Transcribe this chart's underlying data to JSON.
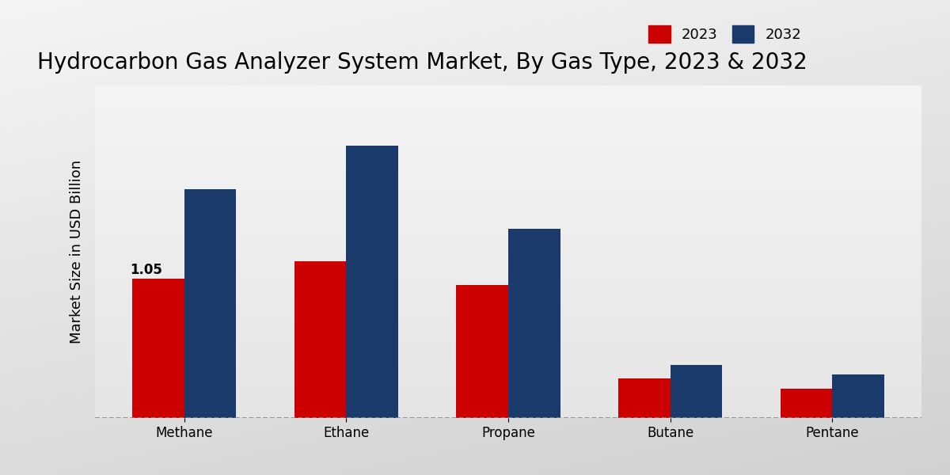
{
  "title": "Hydrocarbon Gas Analyzer System Market, By Gas Type, 2023 & 2032",
  "ylabel": "Market Size in USD Billion",
  "categories": [
    "Methane",
    "Ethane",
    "Propane",
    "Butane",
    "Pentane"
  ],
  "values_2023": [
    1.05,
    1.18,
    1.0,
    0.3,
    0.22
  ],
  "values_2032": [
    1.72,
    2.05,
    1.42,
    0.4,
    0.33
  ],
  "color_2023": "#cc0000",
  "color_2032": "#1a3a6b",
  "bar_annotation_text": "1.05",
  "bar_annotation_idx": 0,
  "title_fontsize": 20,
  "axis_label_fontsize": 13,
  "tick_fontsize": 12,
  "legend_fontsize": 13,
  "bar_width": 0.32,
  "ylim": [
    0,
    2.5
  ]
}
